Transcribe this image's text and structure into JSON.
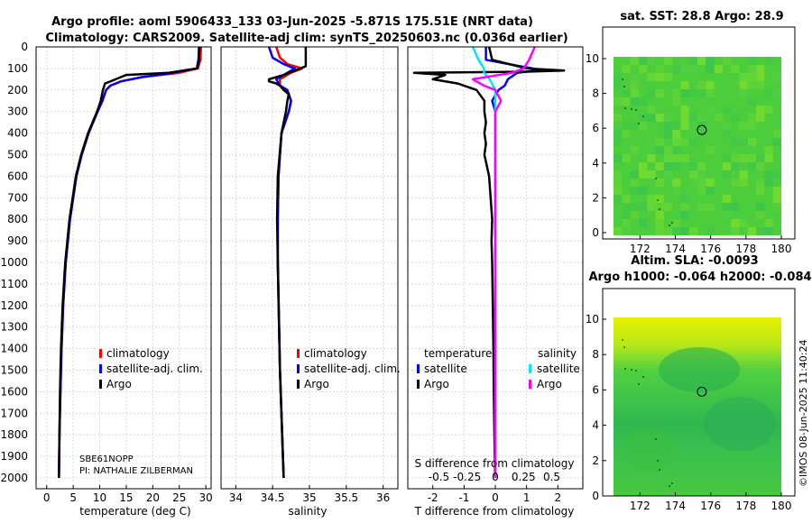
{
  "header": {
    "title_line1": "Argo profile: aoml 5906433_133 03-Jun-2025 -5.871S 175.51E (NRT data)",
    "title_line2": "Climatology: CARS2009. Satellite-adj clim: synTS_20250603.nc (0.036d earlier)"
  },
  "colors": {
    "climatology": "#ff0000",
    "satellite": "#0000ff",
    "argo": "#000000",
    "sat_salinity": "#00e5ff",
    "argo_salinity": "#ff00ff"
  },
  "depth_axis": {
    "ylim": [
      0,
      2050
    ],
    "ticks": [
      "0",
      "100",
      "200",
      "300",
      "400",
      "500",
      "600",
      "700",
      "800",
      "900",
      "1000",
      "1100",
      "1200",
      "1300",
      "1400",
      "1500",
      "1600",
      "1700",
      "1800",
      "1900",
      "2000"
    ]
  },
  "chart_data": [
    {
      "type": "line",
      "panel": "temperature",
      "xlabel": "temperature (deg C)",
      "xlim": [
        -2,
        31
      ],
      "xticks": [
        "0",
        "5",
        "10",
        "15",
        "20",
        "25",
        "30"
      ],
      "legend": [
        "climatology",
        "satellite-adj. clim.",
        "Argo"
      ],
      "series": [
        {
          "name": "climatology",
          "depth": [
            0,
            60,
            100,
            120,
            140,
            160,
            180,
            200,
            250,
            300,
            400,
            500,
            600,
            800,
            1000,
            1200,
            1400,
            1600,
            1800,
            2000
          ],
          "values": [
            29.1,
            29.0,
            28.5,
            25,
            18,
            14,
            12,
            11.2,
            10.5,
            9.6,
            7.9,
            6.6,
            5.6,
            4.4,
            3.6,
            3.1,
            2.8,
            2.6,
            2.4,
            2.3
          ]
        },
        {
          "name": "satellite-adj. clim.",
          "depth": [
            0,
            60,
            100,
            120,
            140,
            160,
            180,
            200,
            250,
            300,
            400,
            500,
            600,
            800,
            1000,
            1200,
            1400,
            1600,
            1800,
            2000
          ],
          "values": [
            28.7,
            28.6,
            28.3,
            24,
            18,
            14,
            12,
            11.2,
            10.5,
            9.6,
            7.9,
            6.6,
            5.6,
            4.4,
            3.6,
            3.1,
            2.8,
            2.6,
            2.4,
            2.3
          ]
        },
        {
          "name": "Argo",
          "depth": [
            0,
            60,
            100,
            120,
            130,
            150,
            170,
            200,
            250,
            300,
            400,
            500,
            600,
            800,
            1000,
            1200,
            1400,
            1600,
            1800,
            2000
          ],
          "values": [
            28.8,
            28.7,
            28.4,
            23,
            15,
            13,
            11,
            10.6,
            10.2,
            9.5,
            7.8,
            6.5,
            5.5,
            4.3,
            3.5,
            3.0,
            2.7,
            2.5,
            2.4,
            2.3
          ]
        }
      ]
    },
    {
      "type": "line",
      "panel": "salinity",
      "xlabel": "salinity",
      "xlim": [
        33.8,
        36.2
      ],
      "xticks": [
        "34",
        "34.5",
        "35",
        "35.5",
        "36"
      ],
      "legend": [
        "climatology",
        "satellite-adj. clim.",
        "Argo"
      ],
      "series": [
        {
          "name": "climatology",
          "depth": [
            0,
            50,
            80,
            100,
            120,
            150,
            180,
            200,
            250,
            300,
            400,
            600,
            800,
            1000,
            1500,
            2000
          ],
          "values": [
            34.55,
            34.6,
            34.7,
            34.9,
            34.75,
            34.6,
            34.6,
            34.7,
            34.75,
            34.72,
            34.62,
            34.58,
            34.57,
            34.57,
            34.6,
            34.65
          ]
        },
        {
          "name": "satellite-adj. clim.",
          "depth": [
            0,
            50,
            80,
            100,
            120,
            150,
            180,
            200,
            250,
            300,
            400,
            600,
            800,
            1000,
            1500,
            2000
          ],
          "values": [
            34.45,
            34.5,
            34.65,
            34.8,
            34.7,
            34.55,
            34.6,
            34.7,
            34.75,
            34.72,
            34.62,
            34.58,
            34.57,
            34.57,
            34.6,
            34.65
          ]
        },
        {
          "name": "Argo",
          "depth": [
            0,
            50,
            90,
            110,
            130,
            150,
            160,
            170,
            180,
            200,
            220,
            250,
            300,
            400,
            600,
            800,
            1000,
            1500,
            2000
          ],
          "values": [
            34.95,
            34.95,
            34.95,
            34.8,
            34.65,
            34.45,
            34.45,
            34.55,
            34.6,
            34.65,
            34.72,
            34.7,
            34.68,
            34.62,
            34.57,
            34.56,
            34.57,
            34.6,
            34.65
          ]
        }
      ]
    },
    {
      "type": "line",
      "panel": "differences",
      "xlabel": "T difference from climatology",
      "xlabel_top": "S difference from climatology",
      "xlim": [
        -2.8,
        2.8
      ],
      "xticks": [
        "-2",
        "-1",
        "0",
        "1",
        "2"
      ],
      "xticks_top": [
        "-0.5",
        "-0.25",
        "0",
        "0.25",
        "0.5"
      ],
      "legend_left_title": "temperature",
      "legend_right_title": "salinity",
      "legend_left": [
        "satellite",
        "Argo"
      ],
      "legend_right": [
        "satellite",
        "Argo"
      ],
      "series": [
        {
          "name": "temperature satellite",
          "depth": [
            0,
            60,
            90,
            100,
            110,
            120,
            150,
            180,
            200,
            250,
            300,
            400,
            600,
            1000,
            2000
          ],
          "values": [
            -0.3,
            -0.3,
            0.8,
            1.2,
            1.3,
            0.7,
            0.4,
            0.3,
            0.1,
            -0.1,
            0,
            0,
            0,
            0,
            0
          ]
        },
        {
          "name": "temperature Argo",
          "depth": [
            0,
            60,
            100,
            110,
            115,
            120,
            130,
            150,
            170,
            200,
            250,
            300,
            350,
            400,
            450,
            500,
            600,
            700,
            800,
            900,
            1000,
            1200,
            1400,
            1600,
            1800,
            2000
          ],
          "values": [
            -0.2,
            -0.1,
            1.0,
            2.2,
            1.0,
            -2.6,
            -1.6,
            -2.0,
            -1.2,
            -0.6,
            -0.35,
            -0.35,
            -0.3,
            -0.35,
            -0.3,
            -0.35,
            -0.2,
            -0.15,
            -0.1,
            -0.12,
            -0.1,
            -0.08,
            -0.06,
            -0.05,
            -0.03,
            -0.01
          ]
        },
        {
          "name": "salinity satellite",
          "depth": [
            0,
            60,
            100,
            120,
            150,
            200,
            300,
            400,
            1000,
            2000
          ],
          "values": [
            -0.2,
            -0.15,
            -0.1,
            -0.1,
            -0.05,
            0,
            0,
            0,
            0,
            0
          ]
        },
        {
          "name": "salinity Argo",
          "depth": [
            0,
            60,
            100,
            120,
            150,
            180,
            200,
            250,
            300,
            400,
            1000,
            2000
          ],
          "values": [
            0.35,
            0.3,
            0.25,
            0.15,
            -0.2,
            -0.1,
            0,
            0.05,
            0,
            0,
            0,
            0
          ]
        }
      ]
    }
  ],
  "info": {
    "sensor": "SBE61NOPP",
    "pi": "PI: NATHALIE ZILBERMAN"
  },
  "maps": {
    "sst": {
      "title": "sat. SST: 28.8 Argo: 28.9",
      "xticks": [
        "172",
        "174",
        "176",
        "178",
        "180"
      ],
      "yticks": [
        "0",
        "2",
        "4",
        "6",
        "8",
        "10"
      ],
      "marker": {
        "lon": 175.5,
        "lat": 5.9
      }
    },
    "sla": {
      "title_line1": "Altim. SLA: -0.0093",
      "title_line2": "Argo h1000: -0.064 h2000: -0.084",
      "xticks": [
        "172",
        "174",
        "176",
        "178",
        "180"
      ],
      "yticks": [
        "0",
        "2",
        "4",
        "6",
        "8",
        "10"
      ],
      "marker": {
        "lon": 175.5,
        "lat": 5.9
      }
    }
  },
  "timestamp": "©IMOS 08-Jun-2025 11:40:24"
}
